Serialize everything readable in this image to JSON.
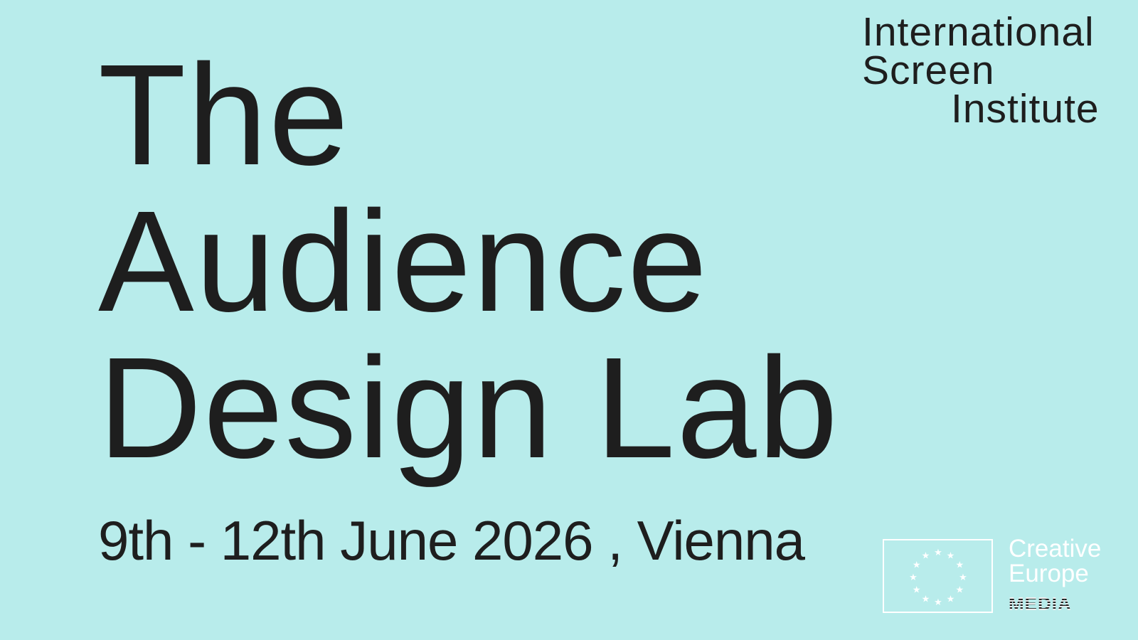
{
  "title": {
    "lines": [
      "The",
      "Audience",
      "Design Lab"
    ]
  },
  "date_location": "9th - 12th June 2026 , Vienna",
  "organizer_logo": {
    "lines": [
      "International",
      "Screen",
      "Institute"
    ]
  },
  "sponsor_logo": {
    "icon": "eu-flag-stars-icon",
    "line1": "Creative",
    "line2": "Europe",
    "line3": "MEDIA"
  },
  "colors": {
    "background": "#b8eceb",
    "text": "#1e1e1e",
    "logo_white": "#ffffff"
  }
}
